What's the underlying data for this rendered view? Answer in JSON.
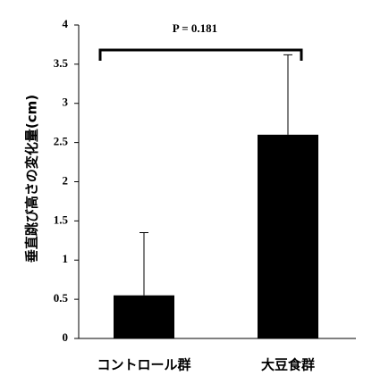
{
  "chart_data": {
    "type": "bar",
    "y_label": "垂直跳び高さの変化量(cm)",
    "annotation": "P = 0.181",
    "categories": [
      "コントロール群",
      "大豆食群"
    ],
    "values": [
      0.55,
      2.6
    ],
    "errors": [
      0.8,
      1.02
    ],
    "color": "#000000",
    "ylim": [
      0,
      4
    ],
    "yticks": [
      0,
      0.5,
      1,
      1.5,
      2,
      2.5,
      3,
      3.5,
      4
    ],
    "grid": false
  }
}
